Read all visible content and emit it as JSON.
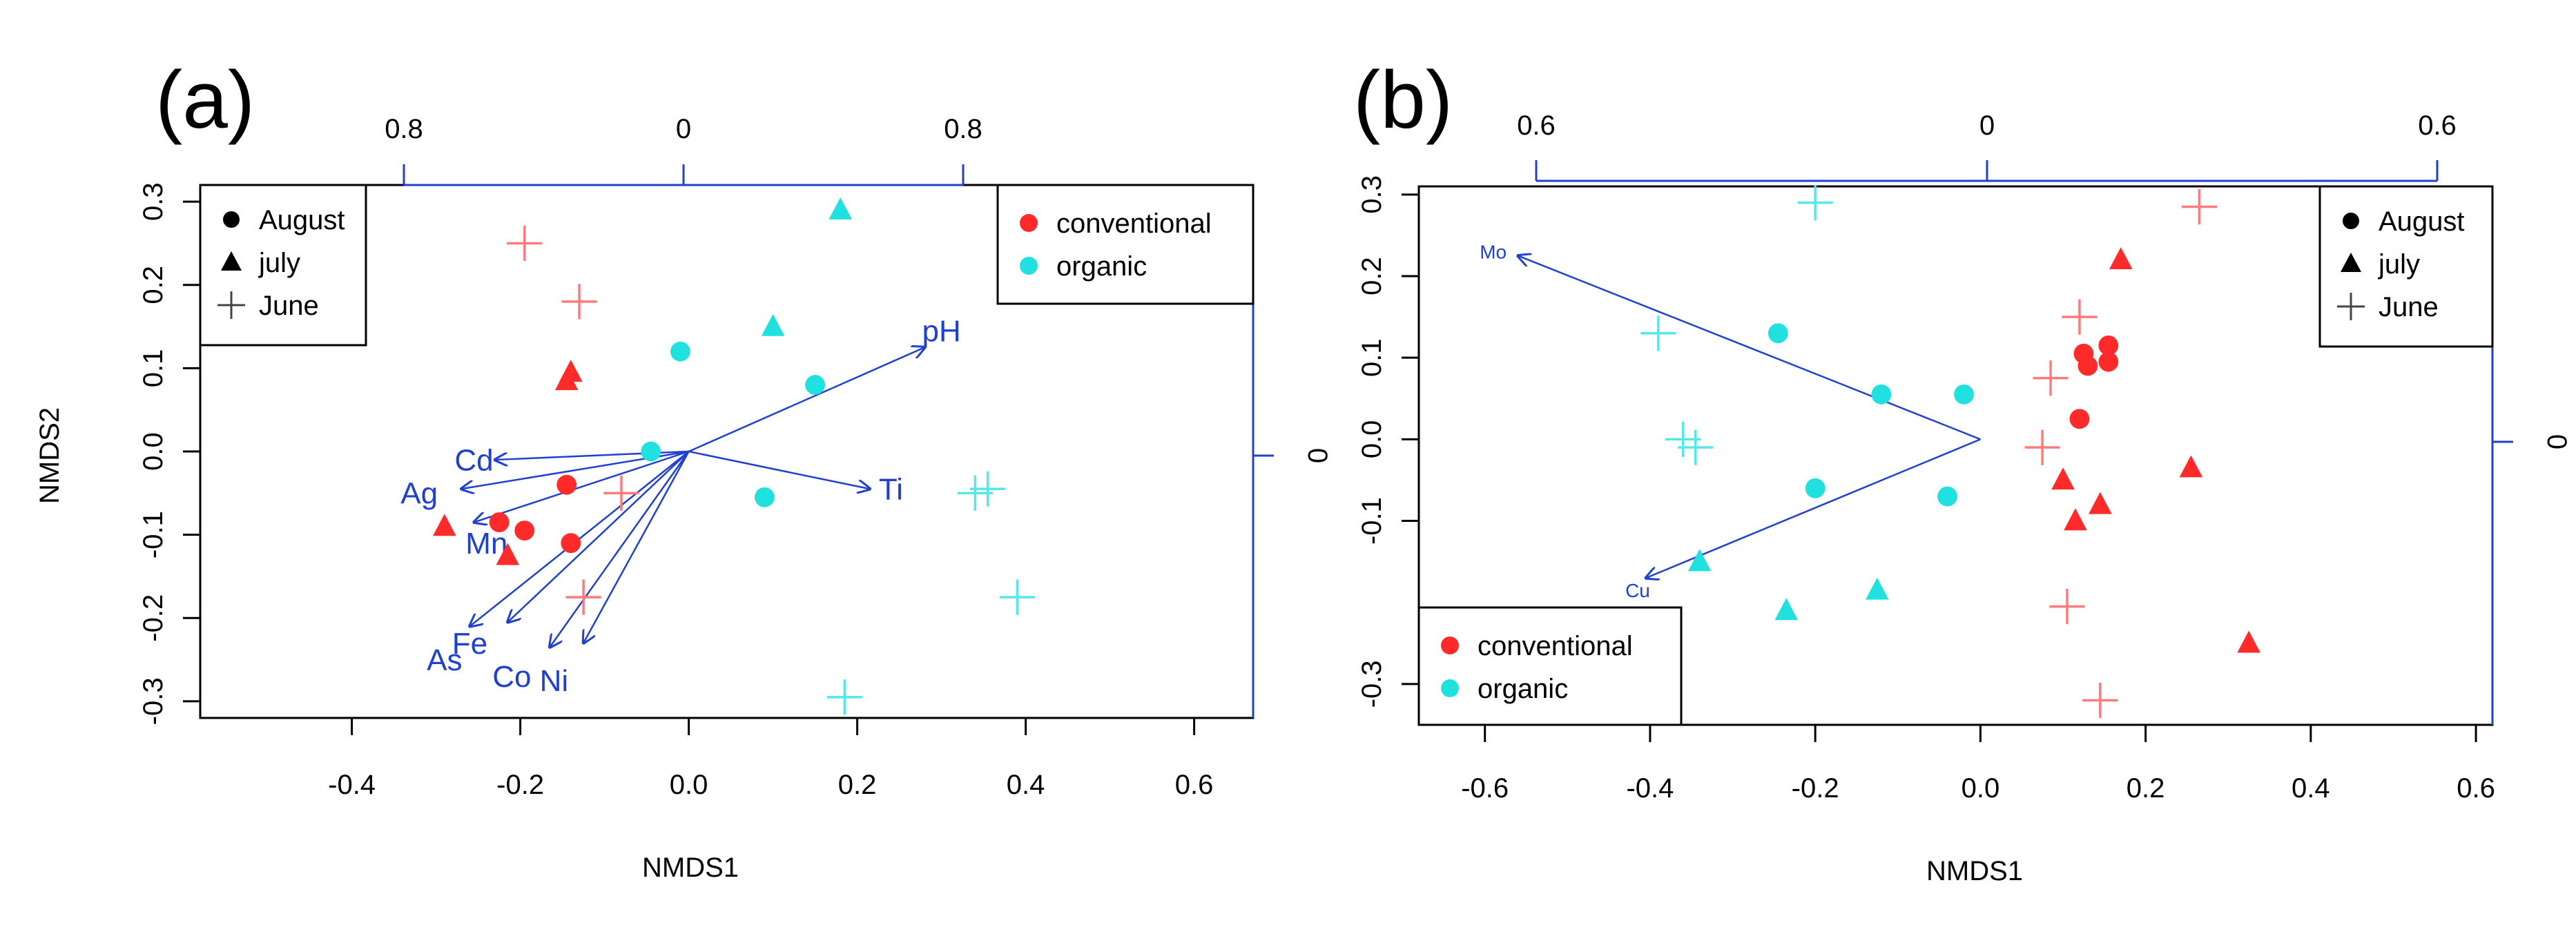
{
  "colors": {
    "conventional": "#ff2a2a",
    "organic": "#20e0e0",
    "june_conventional": "#ff7a7a",
    "june_organic": "#55e8e8",
    "vector": "#2040d0",
    "frame": "#000000"
  },
  "chart_data": [
    {
      "panel": "(a)",
      "type": "scatter",
      "xlabel": "NMDS1",
      "ylabel": "NMDS2",
      "xlim": [
        -0.58,
        0.67
      ],
      "ylim": [
        -0.32,
        0.32
      ],
      "x_ticks": [
        "-0.4",
        "-0.2",
        "0.0",
        "0.2",
        "0.4",
        "0.6"
      ],
      "y_ticks": [
        "-0.3",
        "-0.2",
        "-0.1",
        "0.0",
        "0.1",
        "0.2",
        "0.3"
      ],
      "top_axis_ticks": [
        "0.8",
        "0",
        "0.8"
      ],
      "right_axis_tick": "0",
      "legend_shape": {
        "position": "top-left",
        "items": [
          "August",
          "july",
          "June"
        ]
      },
      "legend_color": {
        "position": "top-right",
        "items": [
          "conventional",
          "organic"
        ]
      },
      "points": [
        {
          "x": -0.195,
          "y": 0.25,
          "group": "conventional",
          "month": "June"
        },
        {
          "x": -0.13,
          "y": 0.18,
          "group": "conventional",
          "month": "June"
        },
        {
          "x": -0.08,
          "y": -0.05,
          "group": "conventional",
          "month": "June"
        },
        {
          "x": -0.125,
          "y": -0.175,
          "group": "conventional",
          "month": "June"
        },
        {
          "x": -0.14,
          "y": 0.095,
          "group": "conventional",
          "month": "july"
        },
        {
          "x": -0.145,
          "y": 0.085,
          "group": "conventional",
          "month": "july"
        },
        {
          "x": -0.29,
          "y": -0.09,
          "group": "conventional",
          "month": "july"
        },
        {
          "x": -0.215,
          "y": -0.125,
          "group": "conventional",
          "month": "july"
        },
        {
          "x": -0.145,
          "y": -0.04,
          "group": "conventional",
          "month": "August"
        },
        {
          "x": -0.225,
          "y": -0.085,
          "group": "conventional",
          "month": "August"
        },
        {
          "x": -0.195,
          "y": -0.095,
          "group": "conventional",
          "month": "August"
        },
        {
          "x": -0.14,
          "y": -0.11,
          "group": "conventional",
          "month": "August"
        },
        {
          "x": 0.18,
          "y": 0.29,
          "group": "organic",
          "month": "july"
        },
        {
          "x": 0.1,
          "y": 0.15,
          "group": "organic",
          "month": "july"
        },
        {
          "x": -0.01,
          "y": 0.12,
          "group": "organic",
          "month": "August"
        },
        {
          "x": 0.15,
          "y": 0.08,
          "group": "organic",
          "month": "August"
        },
        {
          "x": -0.045,
          "y": 0.0,
          "group": "organic",
          "month": "August"
        },
        {
          "x": 0.09,
          "y": -0.055,
          "group": "organic",
          "month": "August"
        },
        {
          "x": 0.34,
          "y": -0.05,
          "group": "organic",
          "month": "June"
        },
        {
          "x": 0.355,
          "y": -0.045,
          "group": "organic",
          "month": "June"
        },
        {
          "x": 0.39,
          "y": -0.175,
          "group": "organic",
          "month": "June"
        },
        {
          "x": 0.185,
          "y": -0.295,
          "group": "organic",
          "month": "June"
        }
      ],
      "vectors": [
        {
          "label": "pH",
          "x": 0.28,
          "y": 0.125,
          "lx": 0.3,
          "ly": 0.145
        },
        {
          "label": "Ti",
          "x": 0.215,
          "y": -0.045,
          "lx": 0.24,
          "ly": -0.045
        },
        {
          "label": "Cd",
          "x": -0.23,
          "y": -0.01,
          "lx": -0.255,
          "ly": -0.01
        },
        {
          "label": "Ag",
          "x": -0.27,
          "y": -0.045,
          "lx": -0.32,
          "ly": -0.05
        },
        {
          "label": "Mn",
          "x": -0.255,
          "y": -0.085,
          "lx": -0.24,
          "ly": -0.11
        },
        {
          "label": "As",
          "x": -0.26,
          "y": -0.21,
          "lx": -0.29,
          "ly": -0.25
        },
        {
          "label": "Fe",
          "x": -0.215,
          "y": -0.205,
          "lx": -0.26,
          "ly": -0.23
        },
        {
          "label": "Co",
          "x": -0.165,
          "y": -0.235,
          "lx": -0.21,
          "ly": -0.27
        },
        {
          "label": "Ni",
          "x": -0.125,
          "y": -0.23,
          "lx": -0.16,
          "ly": -0.275
        }
      ]
    },
    {
      "panel": "(b)",
      "type": "scatter",
      "xlabel": "NMDS1",
      "ylabel": "",
      "xlim": [
        -0.68,
        0.62
      ],
      "ylim": [
        -0.35,
        0.31
      ],
      "x_ticks": [
        "-0.6",
        "-0.4",
        "-0.2",
        "0.0",
        "0.2",
        "0.4",
        "0.6"
      ],
      "y_ticks": [
        "-0.3",
        "-0.1",
        "0.0",
        "0.1",
        "0.2",
        "0.3"
      ],
      "top_axis_ticks": [
        "0.6",
        "0",
        "0.6"
      ],
      "right_axis_tick": "0",
      "legend_shape": {
        "position": "top-right",
        "items": [
          "August",
          "july",
          "June"
        ]
      },
      "legend_color": {
        "position": "bottom-left",
        "items": [
          "conventional",
          "organic"
        ]
      },
      "points": [
        {
          "x": 0.265,
          "y": 0.285,
          "group": "conventional",
          "month": "June"
        },
        {
          "x": 0.12,
          "y": 0.15,
          "group": "conventional",
          "month": "June"
        },
        {
          "x": 0.085,
          "y": 0.075,
          "group": "conventional",
          "month": "June"
        },
        {
          "x": 0.075,
          "y": -0.01,
          "group": "conventional",
          "month": "June"
        },
        {
          "x": 0.105,
          "y": -0.205,
          "group": "conventional",
          "month": "June"
        },
        {
          "x": 0.145,
          "y": -0.32,
          "group": "conventional",
          "month": "June"
        },
        {
          "x": 0.17,
          "y": 0.22,
          "group": "conventional",
          "month": "july"
        },
        {
          "x": 0.255,
          "y": -0.035,
          "group": "conventional",
          "month": "july"
        },
        {
          "x": 0.1,
          "y": -0.05,
          "group": "conventional",
          "month": "july"
        },
        {
          "x": 0.145,
          "y": -0.08,
          "group": "conventional",
          "month": "july"
        },
        {
          "x": 0.115,
          "y": -0.1,
          "group": "conventional",
          "month": "july"
        },
        {
          "x": 0.325,
          "y": -0.25,
          "group": "conventional",
          "month": "july"
        },
        {
          "x": 0.125,
          "y": 0.105,
          "group": "conventional",
          "month": "August"
        },
        {
          "x": 0.155,
          "y": 0.115,
          "group": "conventional",
          "month": "August"
        },
        {
          "x": 0.13,
          "y": 0.09,
          "group": "conventional",
          "month": "August"
        },
        {
          "x": 0.155,
          "y": 0.095,
          "group": "conventional",
          "month": "August"
        },
        {
          "x": 0.12,
          "y": 0.025,
          "group": "conventional",
          "month": "August"
        },
        {
          "x": -0.2,
          "y": 0.29,
          "group": "organic",
          "month": "June"
        },
        {
          "x": -0.39,
          "y": 0.13,
          "group": "organic",
          "month": "June"
        },
        {
          "x": -0.36,
          "y": 0.0,
          "group": "organic",
          "month": "June"
        },
        {
          "x": -0.345,
          "y": -0.01,
          "group": "organic",
          "month": "June"
        },
        {
          "x": -0.245,
          "y": 0.13,
          "group": "organic",
          "month": "August"
        },
        {
          "x": -0.12,
          "y": 0.055,
          "group": "organic",
          "month": "August"
        },
        {
          "x": -0.02,
          "y": 0.055,
          "group": "organic",
          "month": "August"
        },
        {
          "x": -0.2,
          "y": -0.06,
          "group": "organic",
          "month": "August"
        },
        {
          "x": -0.04,
          "y": -0.07,
          "group": "organic",
          "month": "August"
        },
        {
          "x": -0.34,
          "y": -0.15,
          "group": "organic",
          "month": "july"
        },
        {
          "x": -0.235,
          "y": -0.21,
          "group": "organic",
          "month": "july"
        },
        {
          "x": -0.125,
          "y": -0.185,
          "group": "organic",
          "month": "july"
        }
      ],
      "vectors": [
        {
          "label": "Mo",
          "x": -0.56,
          "y": 0.225,
          "lx": -0.59,
          "ly": 0.23
        },
        {
          "label": "Cu",
          "x": -0.405,
          "y": -0.17,
          "lx": -0.415,
          "ly": -0.185
        }
      ]
    }
  ],
  "panels_meta": {
    "a": {
      "label": "(a)"
    },
    "b": {
      "label": "(b)"
    }
  }
}
